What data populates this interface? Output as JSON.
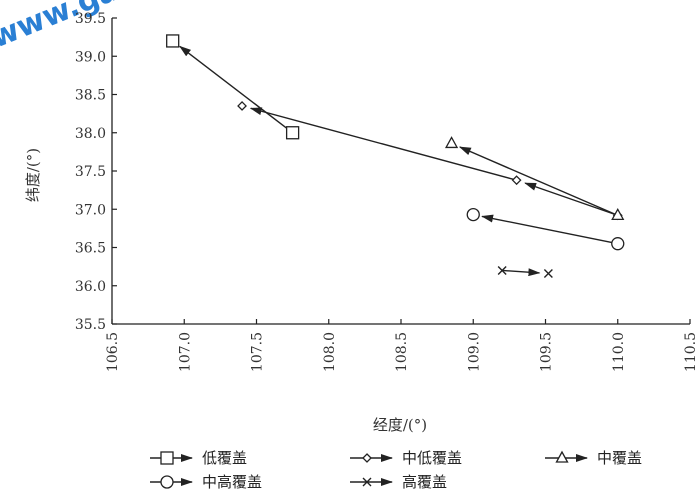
{
  "watermark": {
    "text": "www.gaokao.com",
    "color": "#2a7fd4"
  },
  "chart_data": {
    "type": "line",
    "xlabel": "经度/(°)",
    "ylabel": "纬度/(°)",
    "xlim": [
      106.5,
      110.5
    ],
    "ylim": [
      35.5,
      39.5
    ],
    "xticks": [
      "106.5",
      "107.0",
      "107.5",
      "108.0",
      "108.5",
      "109.0",
      "109.5",
      "110.0",
      "110.5"
    ],
    "yticks": [
      "35.5",
      "36.0",
      "36.5",
      "37.0",
      "37.5",
      "38.0",
      "38.5",
      "39.0",
      "39.5"
    ],
    "grid": false,
    "legend_position": "bottom",
    "series": [
      {
        "name": "低覆盖",
        "marker": "square",
        "points": [
          [
            107.75,
            38.0
          ],
          [
            106.92,
            39.2
          ]
        ]
      },
      {
        "name": "中低覆盖",
        "marker": "diamond",
        "points": [
          [
            110.0,
            36.92
          ],
          [
            109.3,
            37.38
          ],
          [
            107.4,
            38.35
          ]
        ]
      },
      {
        "name": "中覆盖",
        "marker": "triangle",
        "points": [
          [
            110.0,
            36.92
          ],
          [
            108.85,
            37.86
          ]
        ]
      },
      {
        "name": "中高覆盖",
        "marker": "circle",
        "points": [
          [
            110.0,
            36.55
          ],
          [
            109.0,
            36.93
          ]
        ]
      },
      {
        "name": "高覆盖",
        "marker": "x",
        "points": [
          [
            109.2,
            36.2
          ],
          [
            109.52,
            36.16
          ]
        ]
      }
    ]
  }
}
